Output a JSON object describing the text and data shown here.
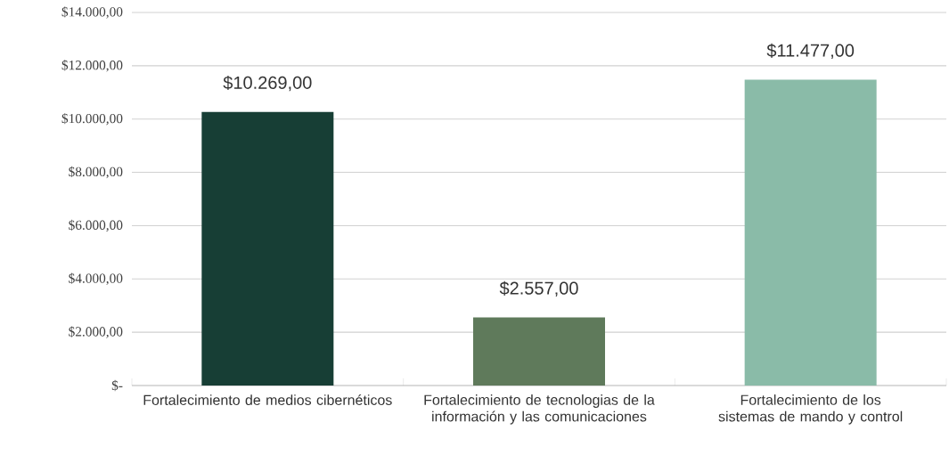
{
  "chart_data": {
    "type": "bar",
    "categories": [
      "Fortalecimiento de medios cibernéticos",
      "Fortalecimiento de tecnologias de la información y las comunicaciones",
      "Fortalecimiento de los sistemas de mando y control"
    ],
    "values": [
      10269,
      2557,
      11477
    ],
    "colors": [
      "#173e35",
      "#5f7a5b",
      "#8abba8"
    ],
    "value_labels": [
      "$10.269,00",
      "$2.557,00",
      "$11.477,00"
    ],
    "ylim": [
      0,
      14000
    ],
    "yticks": [
      {
        "value": 0,
        "label": "$-"
      },
      {
        "value": 2000,
        "label": "$2.000,00"
      },
      {
        "value": 4000,
        "label": "$4.000,00"
      },
      {
        "value": 6000,
        "label": "$6.000,00"
      },
      {
        "value": 8000,
        "label": "$8.000,00"
      },
      {
        "value": 10000,
        "label": "$10.000,00"
      },
      {
        "value": 12000,
        "label": "$12.000,00"
      },
      {
        "value": 14000,
        "label": "$14.000,00"
      }
    ],
    "grid": "y"
  }
}
